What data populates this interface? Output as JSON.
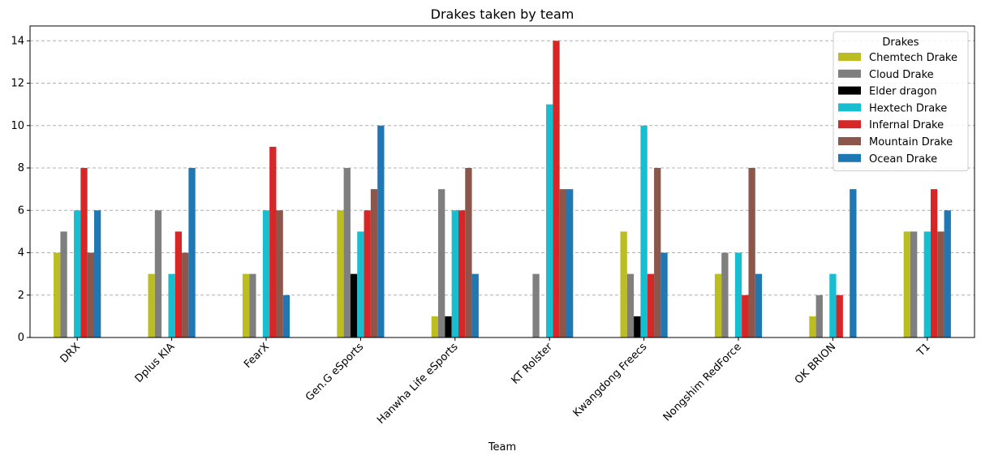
{
  "chart_data": {
    "type": "bar",
    "title": "Drakes taken by team",
    "xlabel": "Team",
    "ylabel": "",
    "ylim": [
      0,
      14.7
    ],
    "yticks": [
      0,
      2,
      4,
      6,
      8,
      10,
      12,
      14
    ],
    "grid": "horizontal dashed",
    "legend": {
      "title": "Drakes",
      "placement": "top-right"
    },
    "categories": [
      "DRX",
      "Dplus KIA",
      "FearX",
      "Gen.G eSports",
      "Hanwha Life eSports",
      "KT Rolster",
      "Kwangdong Freecs",
      "Nongshim RedForce",
      "OK BRION",
      "T1"
    ],
    "series": [
      {
        "name": "Chemtech Drake",
        "color": "#bcbd22",
        "values": [
          4,
          3,
          3,
          6,
          1,
          0,
          5,
          3,
          1,
          5
        ]
      },
      {
        "name": "Cloud Drake",
        "color": "#7f7f7f",
        "values": [
          5,
          6,
          3,
          8,
          7,
          3,
          3,
          4,
          2,
          5
        ]
      },
      {
        "name": "Elder dragon",
        "color": "#000000",
        "values": [
          0,
          0,
          0,
          3,
          1,
          0,
          1,
          0,
          0,
          0
        ]
      },
      {
        "name": "Hextech Drake",
        "color": "#17becf",
        "values": [
          6,
          3,
          6,
          5,
          6,
          11,
          10,
          4,
          3,
          5
        ]
      },
      {
        "name": "Infernal Drake",
        "color": "#d62728",
        "values": [
          8,
          5,
          9,
          6,
          6,
          14,
          3,
          2,
          2,
          7
        ]
      },
      {
        "name": "Mountain Drake",
        "color": "#8c564b",
        "values": [
          4,
          4,
          6,
          7,
          8,
          7,
          8,
          8,
          0,
          5
        ]
      },
      {
        "name": "Ocean Drake",
        "color": "#1f77b4",
        "values": [
          6,
          8,
          2,
          10,
          3,
          7,
          4,
          3,
          7,
          6
        ]
      }
    ]
  }
}
